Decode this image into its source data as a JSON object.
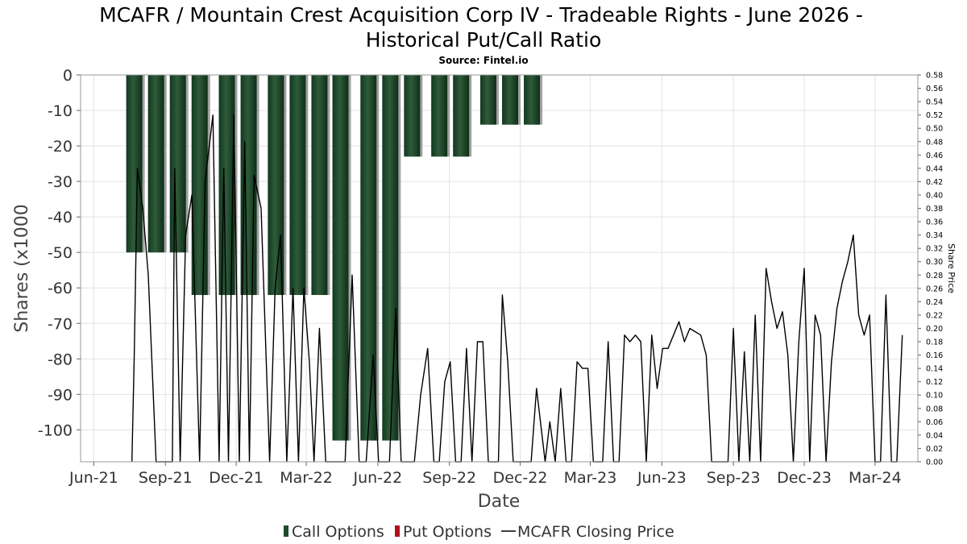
{
  "header": {
    "title_line1": "MCAFR / Mountain Crest Acquisition Corp IV - Tradeable Rights - June 2026 -",
    "title_line2": "Historical Put/Call Ratio",
    "source": "Source: Fintel.io"
  },
  "legend": {
    "calls": "Call Options",
    "puts": "Put Options",
    "price": "MCAFR Closing Price"
  },
  "colors": {
    "call": "#1f4a2b",
    "put": "#b0101a",
    "price": "#000000",
    "grid": "#e3e3e3",
    "frame": "#999999"
  },
  "chart_data": {
    "type": "bar",
    "xlabel": "Date",
    "ylabel": "Shares (x1000",
    "y2label": "Share Price",
    "x_tick_labels": [
      "Jun-21",
      "Sep-21",
      "Dec-21",
      "Mar-22",
      "Jun-22",
      "Sep-22",
      "Dec-22",
      "Mar-23",
      "Jun-23",
      "Sep-23",
      "Dec-23",
      "Mar-24"
    ],
    "y_tick_labels": [
      "0",
      "-10",
      "-20",
      "-30",
      "-40",
      "-50",
      "-60",
      "-70",
      "-80",
      "-90",
      "-100"
    ],
    "y2_tick_labels": [
      "0.58",
      "0.56",
      "0.54",
      "0.52",
      "0.50",
      "0.48",
      "0.46",
      "0.44",
      "0.42",
      "0.40",
      "0.38",
      "0.36",
      "0.34",
      "0.32",
      "0.30",
      "0.28",
      "0.26",
      "0.24",
      "0.22",
      "0.20",
      "0.18",
      "0.16",
      "0.14",
      "0.12",
      "0.10",
      "0.08",
      "0.06",
      "0.04",
      "0.02",
      "0.00"
    ],
    "x_range": [
      "2021-05-15",
      "2024-04-25"
    ],
    "ylim": [
      -109,
      0
    ],
    "y2lim": [
      0,
      0.58
    ],
    "grid": true,
    "legend_position": "bottom",
    "series": [
      {
        "name": "Call Options",
        "dates": [
          "2021-07-23",
          "2021-08-20",
          "2021-09-17",
          "2021-10-15",
          "2021-11-19",
          "2021-12-17",
          "2022-01-21",
          "2022-02-18",
          "2022-03-18",
          "2022-04-14",
          "2022-05-20",
          "2022-06-17",
          "2022-07-15",
          "2022-08-19",
          "2022-09-16",
          "2022-10-21",
          "2022-11-18",
          "2022-12-16"
        ],
        "values": [
          -50,
          -50,
          -50,
          -62,
          -62,
          -62,
          -62,
          -62,
          -62,
          -103,
          -103,
          -103,
          -23,
          -23,
          -23,
          -14,
          -14,
          -14
        ]
      },
      {
        "name": "Put Options",
        "dates": [],
        "values": []
      },
      {
        "name": "MCAFR Closing Price",
        "axis": "secondary",
        "points": [
          [
            "2021-07-20",
            0.0
          ],
          [
            "2021-07-23",
            0.16
          ],
          [
            "2021-07-27",
            0.44
          ],
          [
            "2021-08-03",
            0.38
          ],
          [
            "2021-08-10",
            0.28
          ],
          [
            "2021-08-20",
            0.0
          ],
          [
            "2021-09-10",
            0.0
          ],
          [
            "2021-09-13",
            0.44
          ],
          [
            "2021-09-20",
            0.0
          ],
          [
            "2021-09-27",
            0.34
          ],
          [
            "2021-10-05",
            0.4
          ],
          [
            "2021-10-15",
            0.0
          ],
          [
            "2021-10-22",
            0.42
          ],
          [
            "2021-11-01",
            0.52
          ],
          [
            "2021-11-09",
            0.0
          ],
          [
            "2021-11-15",
            0.44
          ],
          [
            "2021-11-21",
            0.0
          ],
          [
            "2021-11-28",
            0.52
          ],
          [
            "2021-12-05",
            0.0
          ],
          [
            "2021-12-12",
            0.48
          ],
          [
            "2021-12-18",
            0.0
          ],
          [
            "2021-12-24",
            0.43
          ],
          [
            "2022-01-02",
            0.38
          ],
          [
            "2022-01-13",
            0.0
          ],
          [
            "2022-01-20",
            0.26
          ],
          [
            "2022-01-27",
            0.34
          ],
          [
            "2022-02-04",
            0.0
          ],
          [
            "2022-02-12",
            0.26
          ],
          [
            "2022-02-19",
            0.0
          ],
          [
            "2022-02-26",
            0.26
          ],
          [
            "2022-03-05",
            0.15
          ],
          [
            "2022-03-11",
            0.0
          ],
          [
            "2022-03-18",
            0.2
          ],
          [
            "2022-03-26",
            0.0
          ],
          [
            "2022-04-04",
            0.0
          ],
          [
            "2022-04-12",
            0.0
          ],
          [
            "2022-04-20",
            0.0
          ],
          [
            "2022-04-29",
            0.28
          ],
          [
            "2022-05-08",
            0.0
          ],
          [
            "2022-05-17",
            0.0
          ],
          [
            "2022-05-26",
            0.16
          ],
          [
            "2022-06-02",
            0.0
          ],
          [
            "2022-06-09",
            0.0
          ],
          [
            "2022-06-16",
            0.0
          ],
          [
            "2022-06-24",
            0.23
          ],
          [
            "2022-07-01",
            0.0
          ],
          [
            "2022-07-18",
            0.0
          ],
          [
            "2022-07-26",
            0.1
          ],
          [
            "2022-08-04",
            0.17
          ],
          [
            "2022-08-12",
            0.0
          ],
          [
            "2022-08-19",
            0.0
          ],
          [
            "2022-08-26",
            0.12
          ],
          [
            "2022-09-02",
            0.15
          ],
          [
            "2022-09-09",
            0.0
          ],
          [
            "2022-09-16",
            0.0
          ],
          [
            "2022-09-23",
            0.17
          ],
          [
            "2022-09-30",
            0.0
          ],
          [
            "2022-10-07",
            0.18
          ],
          [
            "2022-10-14",
            0.18
          ],
          [
            "2022-10-21",
            0.0
          ],
          [
            "2022-11-03",
            0.0
          ],
          [
            "2022-11-08",
            0.25
          ],
          [
            "2022-11-15",
            0.15
          ],
          [
            "2022-11-22",
            0.0
          ],
          [
            "2022-12-15",
            0.0
          ],
          [
            "2022-12-22",
            0.11
          ],
          [
            "2023-01-02",
            0.0
          ],
          [
            "2023-01-08",
            0.06
          ],
          [
            "2023-01-15",
            0.0
          ],
          [
            "2023-01-22",
            0.11
          ],
          [
            "2023-01-29",
            0.0
          ],
          [
            "2023-02-05",
            0.0
          ],
          [
            "2023-02-12",
            0.15
          ],
          [
            "2023-02-19",
            0.14
          ],
          [
            "2023-02-26",
            0.14
          ],
          [
            "2023-03-05",
            0.0
          ],
          [
            "2023-03-17",
            0.0
          ],
          [
            "2023-03-24",
            0.18
          ],
          [
            "2023-03-31",
            0.0
          ],
          [
            "2023-04-07",
            0.0
          ],
          [
            "2023-04-14",
            0.19
          ],
          [
            "2023-04-21",
            0.18
          ],
          [
            "2023-04-28",
            0.19
          ],
          [
            "2023-05-05",
            0.18
          ],
          [
            "2023-05-12",
            0.0
          ],
          [
            "2023-05-19",
            0.19
          ],
          [
            "2023-05-26",
            0.11
          ],
          [
            "2023-06-02",
            0.17
          ],
          [
            "2023-06-09",
            0.17
          ],
          [
            "2023-06-16",
            0.19
          ],
          [
            "2023-06-23",
            0.21
          ],
          [
            "2023-06-30",
            0.18
          ],
          [
            "2023-07-07",
            0.2
          ],
          [
            "2023-07-14",
            0.195
          ],
          [
            "2023-07-21",
            0.19
          ],
          [
            "2023-07-28",
            0.16
          ],
          [
            "2023-08-04",
            0.0
          ],
          [
            "2023-08-25",
            0.0
          ],
          [
            "2023-09-01",
            0.2
          ],
          [
            "2023-09-08",
            0.0
          ],
          [
            "2023-09-15",
            0.165
          ],
          [
            "2023-09-22",
            0.0
          ],
          [
            "2023-09-29",
            0.22
          ],
          [
            "2023-10-06",
            0.0
          ],
          [
            "2023-10-13",
            0.29
          ],
          [
            "2023-10-20",
            0.24
          ],
          [
            "2023-10-27",
            0.2
          ],
          [
            "2023-11-03",
            0.225
          ],
          [
            "2023-11-10",
            0.16
          ],
          [
            "2023-11-17",
            0.0
          ],
          [
            "2023-11-24",
            0.18
          ],
          [
            "2023-12-01",
            0.29
          ],
          [
            "2023-12-08",
            0.0
          ],
          [
            "2023-12-15",
            0.22
          ],
          [
            "2023-12-22",
            0.19
          ],
          [
            "2023-12-29",
            0.0
          ],
          [
            "2024-01-05",
            0.15
          ],
          [
            "2024-01-12",
            0.23
          ],
          [
            "2024-01-19",
            0.27
          ],
          [
            "2024-01-26",
            0.3
          ],
          [
            "2024-02-02",
            0.34
          ],
          [
            "2024-02-09",
            0.22
          ],
          [
            "2024-02-16",
            0.19
          ],
          [
            "2024-02-23",
            0.22
          ],
          [
            "2024-03-01",
            0.0
          ],
          [
            "2024-03-08",
            0.0
          ],
          [
            "2024-03-15",
            0.25
          ],
          [
            "2024-03-22",
            0.0
          ],
          [
            "2024-03-29",
            0.0
          ],
          [
            "2024-04-05",
            0.19
          ]
        ]
      }
    ]
  }
}
